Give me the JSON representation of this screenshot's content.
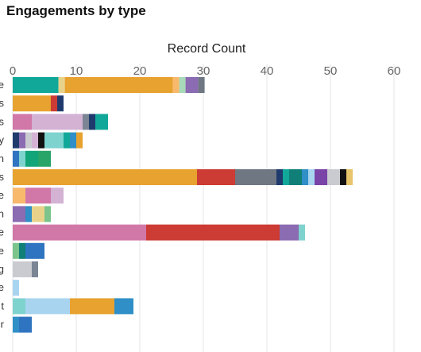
{
  "page": {
    "title": "Engagements by type"
  },
  "chart_data": {
    "type": "bar",
    "orientation": "horizontal",
    "stacked": true,
    "title": "Engagements by type",
    "xlabel": "Record Count",
    "ylabel": "",
    "xlim": [
      0,
      60
    ],
    "xticks": [
      0,
      10,
      20,
      30,
      40,
      50,
      60
    ],
    "grid": true,
    "legend": "none",
    "row_labels": [
      "e",
      "s",
      "s",
      "y",
      "n",
      "s",
      "e",
      "n",
      "e",
      "e",
      "g",
      "e",
      "t",
      "r"
    ],
    "rows": [
      {
        "label": "e",
        "segments": [
          {
            "value": 7.2,
            "color": "#12a899"
          },
          {
            "value": 1.0,
            "color": "#e8d28a"
          },
          {
            "value": 17.0,
            "color": "#e7a22f"
          },
          {
            "value": 1.0,
            "color": "#f8b96d"
          },
          {
            "value": 1.0,
            "color": "#a8d9b8"
          },
          {
            "value": 2.0,
            "color": "#8b6bb1"
          },
          {
            "value": 1.0,
            "color": "#6e7782"
          }
        ]
      },
      {
        "label": "s",
        "segments": [
          {
            "value": 6.0,
            "color": "#e7a22f"
          },
          {
            "value": 1.0,
            "color": "#cc3b34"
          },
          {
            "value": 1.0,
            "color": "#1f3b6e"
          }
        ]
      },
      {
        "label": "s",
        "segments": [
          {
            "value": 3.0,
            "color": "#d178a8"
          },
          {
            "value": 8.0,
            "color": "#d3b2d4"
          },
          {
            "value": 1.0,
            "color": "#7b8594"
          },
          {
            "value": 1.0,
            "color": "#1f3b6e"
          },
          {
            "value": 2.0,
            "color": "#12a899"
          }
        ]
      },
      {
        "label": "y",
        "segments": [
          {
            "value": 1.0,
            "color": "#1f3b6e"
          },
          {
            "value": 1.0,
            "color": "#8b6bb1"
          },
          {
            "value": 1.0,
            "color": "#c9cbd0"
          },
          {
            "value": 1.0,
            "color": "#d3b2d4"
          },
          {
            "value": 1.0,
            "color": "#111111"
          },
          {
            "value": 3.0,
            "color": "#7fd3cf"
          },
          {
            "value": 1.0,
            "color": "#12a899"
          },
          {
            "value": 1.0,
            "color": "#2f8fc6"
          },
          {
            "value": 1.0,
            "color": "#e7a22f"
          }
        ]
      },
      {
        "label": "n",
        "segments": [
          {
            "value": 1.0,
            "color": "#2f74c0"
          },
          {
            "value": 1.0,
            "color": "#7fd3cf"
          },
          {
            "value": 2.0,
            "color": "#12a57a"
          },
          {
            "value": 2.0,
            "color": "#27a468"
          }
        ]
      },
      {
        "label": "s",
        "segments": [
          {
            "value": 29.0,
            "color": "#e7a22f"
          },
          {
            "value": 6.0,
            "color": "#cc3b34"
          },
          {
            "value": 6.5,
            "color": "#6e7782"
          },
          {
            "value": 1.0,
            "color": "#1f3b6e"
          },
          {
            "value": 1.0,
            "color": "#12a899"
          },
          {
            "value": 2.0,
            "color": "#0f7f78"
          },
          {
            "value": 1.0,
            "color": "#2f8fc6"
          },
          {
            "value": 1.0,
            "color": "#a8d4f0"
          },
          {
            "value": 2.0,
            "color": "#7a43a8"
          },
          {
            "value": 2.0,
            "color": "#c9cbd0"
          },
          {
            "value": 1.0,
            "color": "#111111"
          },
          {
            "value": 1.0,
            "color": "#e8c56a"
          }
        ]
      },
      {
        "label": "e",
        "segments": [
          {
            "value": 2.0,
            "color": "#f8b96d"
          },
          {
            "value": 4.0,
            "color": "#d178a8"
          },
          {
            "value": 2.0,
            "color": "#d3b2d4"
          }
        ]
      },
      {
        "label": "n",
        "segments": [
          {
            "value": 2.0,
            "color": "#8b6bb1"
          },
          {
            "value": 1.0,
            "color": "#2f8fc6"
          },
          {
            "value": 2.0,
            "color": "#e8d28a"
          },
          {
            "value": 1.0,
            "color": "#7bc48b"
          }
        ]
      },
      {
        "label": "e",
        "segments": [
          {
            "value": 21.0,
            "color": "#d178a8"
          },
          {
            "value": 21.0,
            "color": "#cc3b34"
          },
          {
            "value": 3.0,
            "color": "#8b6bb1"
          },
          {
            "value": 1.0,
            "color": "#7fd3cf"
          }
        ]
      },
      {
        "label": "e",
        "segments": [
          {
            "value": 1.0,
            "color": "#7bc48b"
          },
          {
            "value": 1.0,
            "color": "#0f7f78"
          },
          {
            "value": 3.0,
            "color": "#2f74c0"
          }
        ]
      },
      {
        "label": "g",
        "segments": [
          {
            "value": 3.0,
            "color": "#c9cbd0"
          },
          {
            "value": 1.0,
            "color": "#7b8594"
          }
        ]
      },
      {
        "label": "e",
        "segments": [
          {
            "value": 1.0,
            "color": "#a8d4f0"
          }
        ]
      },
      {
        "label": "t",
        "segments": [
          {
            "value": 2.0,
            "color": "#7fd3cf"
          },
          {
            "value": 7.0,
            "color": "#a8d4f0"
          },
          {
            "value": 7.0,
            "color": "#e7a22f"
          },
          {
            "value": 3.0,
            "color": "#2f8fc6"
          }
        ]
      },
      {
        "label": "r",
        "segments": [
          {
            "value": 1.0,
            "color": "#2f8fc6"
          },
          {
            "value": 2.0,
            "color": "#2f74c0"
          }
        ]
      }
    ]
  }
}
